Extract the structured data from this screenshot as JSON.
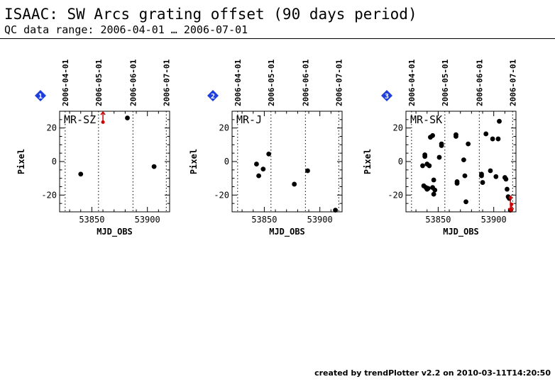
{
  "header": {
    "title": "ISAAC: SW Arcs grating offset (90 days period)",
    "subtitle": "QC data range: 2006-04-01 … 2006-07-01"
  },
  "footer": {
    "text": "created by trendPlotter v2.2 on 2010-03-11T14:20:50"
  },
  "colors": {
    "marker": "#000000",
    "outlier": "#cc0000",
    "badge": "#1f3fdd",
    "axis": "#000000"
  },
  "chart_data": [
    {
      "type": "scatter",
      "badge": "1",
      "label": "MR-SZ",
      "xlabel": "MJD_OBS",
      "ylabel": "Pixel",
      "xlim": [
        53821,
        53920
      ],
      "ylim": [
        -30,
        30
      ],
      "xticks": [
        53850,
        53900
      ],
      "yticks": [
        20,
        0,
        -20
      ],
      "date_ticks": [
        {
          "mjd": 53826,
          "label": "2006-04-01"
        },
        {
          "mjd": 53856,
          "label": "2006-05-01"
        },
        {
          "mjd": 53887,
          "label": "2006-06-01"
        },
        {
          "mjd": 53917,
          "label": "2006-07-01"
        }
      ],
      "points": [
        {
          "x": 53840,
          "y": -7.5
        },
        {
          "x": 53882,
          "y": 26
        },
        {
          "x": 53906,
          "y": -3
        }
      ],
      "outliers": [
        {
          "x": 53860,
          "y": 23.5,
          "dir": "up"
        }
      ]
    },
    {
      "type": "scatter",
      "badge": "2",
      "label": "MR-J",
      "xlabel": "MJD_OBS",
      "ylabel": "Pixel",
      "xlim": [
        53821,
        53920
      ],
      "ylim": [
        -30,
        30
      ],
      "xticks": [
        53850,
        53900
      ],
      "yticks": [
        20,
        0,
        -20
      ],
      "date_ticks": [
        {
          "mjd": 53826,
          "label": "2006-04-01"
        },
        {
          "mjd": 53856,
          "label": "2006-05-01"
        },
        {
          "mjd": 53887,
          "label": "2006-06-01"
        },
        {
          "mjd": 53917,
          "label": "2006-07-01"
        }
      ],
      "points": [
        {
          "x": 53843,
          "y": -1.5
        },
        {
          "x": 53845,
          "y": -8.5
        },
        {
          "x": 53849,
          "y": -4.5
        },
        {
          "x": 53854,
          "y": 4.5
        },
        {
          "x": 53877,
          "y": -13.5
        },
        {
          "x": 53889,
          "y": -5.5
        },
        {
          "x": 53914,
          "y": -29
        }
      ],
      "outliers": []
    },
    {
      "type": "scatter",
      "badge": "3",
      "label": "MR-SK",
      "xlabel": "MJD_OBS",
      "ylabel": "Pixel",
      "xlim": [
        53821,
        53920
      ],
      "ylim": [
        -30,
        30
      ],
      "xticks": [
        53850,
        53900
      ],
      "yticks": [
        20,
        0,
        -20
      ],
      "date_ticks": [
        {
          "mjd": 53826,
          "label": "2006-04-01"
        },
        {
          "mjd": 53856,
          "label": "2006-05-01"
        },
        {
          "mjd": 53887,
          "label": "2006-06-01"
        },
        {
          "mjd": 53917,
          "label": "2006-07-01"
        }
      ],
      "points": [
        {
          "x": 53836,
          "y": -2.5
        },
        {
          "x": 53837,
          "y": -14.5
        },
        {
          "x": 53838,
          "y": 4
        },
        {
          "x": 53838,
          "y": 3
        },
        {
          "x": 53839,
          "y": -15.5
        },
        {
          "x": 53840,
          "y": -16.5
        },
        {
          "x": 53840,
          "y": -1.5
        },
        {
          "x": 53841,
          "y": -16
        },
        {
          "x": 53842,
          "y": -2.5
        },
        {
          "x": 53843,
          "y": 14.5
        },
        {
          "x": 53845,
          "y": 15.5
        },
        {
          "x": 53845,
          "y": -15.5
        },
        {
          "x": 53846,
          "y": -19.5
        },
        {
          "x": 53846,
          "y": -11
        },
        {
          "x": 53847,
          "y": -17
        },
        {
          "x": 53851,
          "y": 2.5
        },
        {
          "x": 53853,
          "y": 10.5
        },
        {
          "x": 53853,
          "y": 9.5
        },
        {
          "x": 53866,
          "y": 16
        },
        {
          "x": 53866,
          "y": 15
        },
        {
          "x": 53867,
          "y": -12
        },
        {
          "x": 53867,
          "y": -13
        },
        {
          "x": 53873,
          "y": 1
        },
        {
          "x": 53874,
          "y": -8.5
        },
        {
          "x": 53875,
          "y": -24
        },
        {
          "x": 53877,
          "y": 10.5
        },
        {
          "x": 53889,
          "y": -7.5
        },
        {
          "x": 53889,
          "y": -8.5
        },
        {
          "x": 53890,
          "y": -12.5
        },
        {
          "x": 53893,
          "y": 16.5
        },
        {
          "x": 53897,
          "y": -5.5
        },
        {
          "x": 53899,
          "y": 13.5
        },
        {
          "x": 53902,
          "y": -9
        },
        {
          "x": 53904,
          "y": 13.5
        },
        {
          "x": 53905,
          "y": 24
        },
        {
          "x": 53910,
          "y": -9.5
        },
        {
          "x": 53911,
          "y": -10.5
        },
        {
          "x": 53912,
          "y": -16.5
        },
        {
          "x": 53913,
          "y": -21
        },
        {
          "x": 53914,
          "y": -22
        },
        {
          "x": 53915,
          "y": -29
        }
      ],
      "outliers": [
        {
          "x": 53915,
          "y": -21.5,
          "dir": "down"
        },
        {
          "x": 53916,
          "y": -25.5,
          "dir": "down"
        }
      ]
    }
  ]
}
